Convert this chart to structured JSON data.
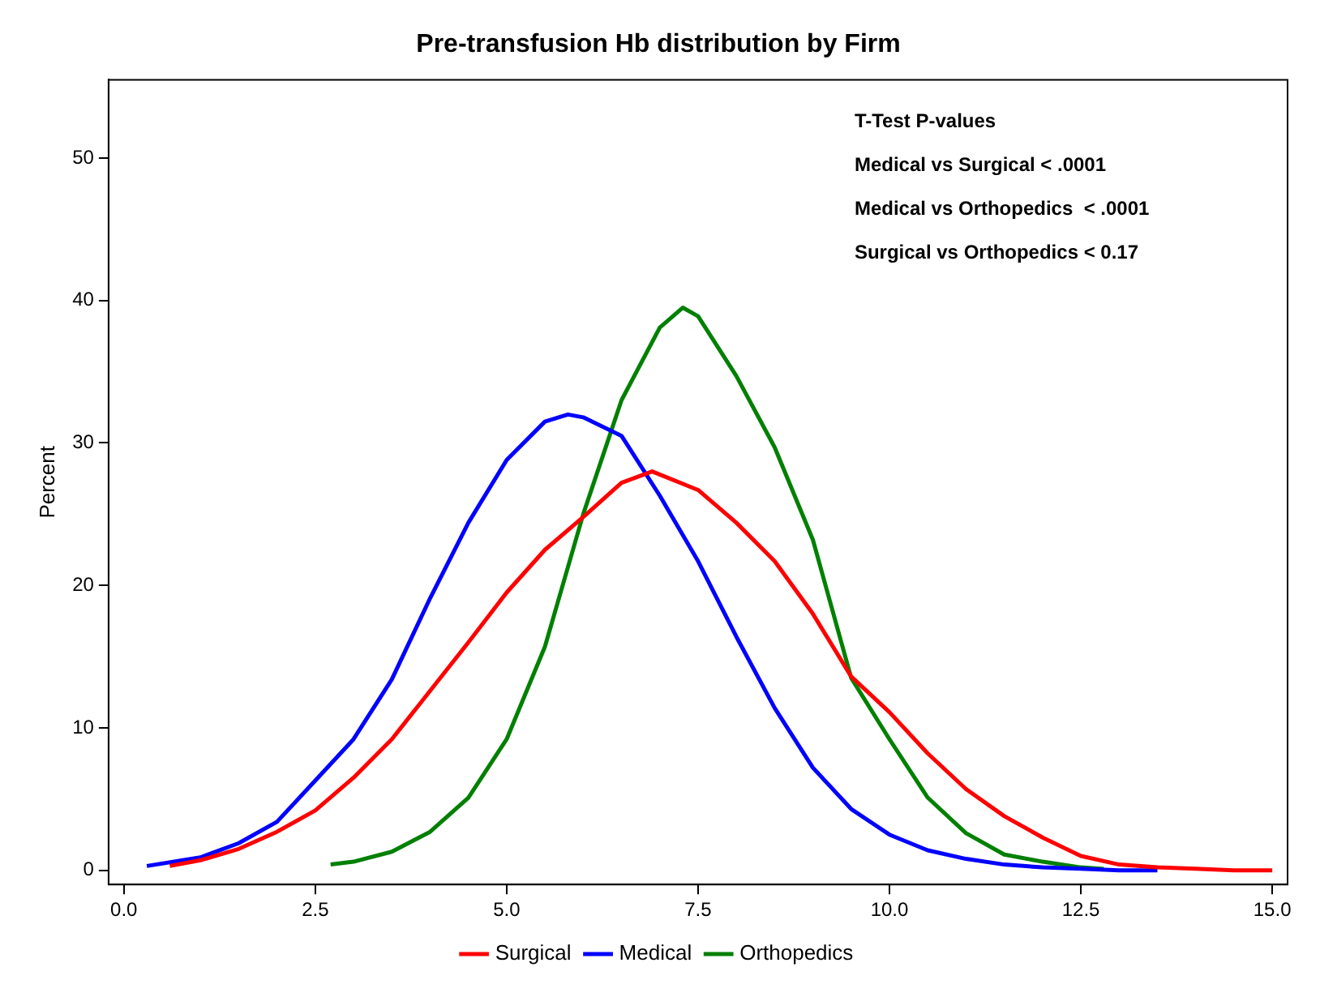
{
  "chart_data": {
    "type": "line",
    "title": "Pre-transfusion Hb distribution by Firm",
    "ylabel": "Percent",
    "annotations": [
      "T-Test P-values",
      "Medical vs Surgical < .0001",
      "Medical vs Orthopedics  < .0001",
      "Surgical vs Orthopedics < 0.17"
    ],
    "series": [
      {
        "name": "Surgical",
        "color": "#ff0000",
        "x": [
          0.6,
          1.0,
          1.5,
          2.0,
          2.5,
          3.0,
          3.5,
          4.0,
          4.5,
          5.0,
          5.5,
          6.0,
          6.5,
          6.9,
          7.5,
          8.0,
          8.5,
          9.0,
          9.5,
          10.0,
          10.5,
          11.0,
          11.5,
          12.0,
          12.5,
          13.0,
          13.5,
          14.0,
          14.5,
          15.0
        ],
        "values": [
          0.3,
          0.7,
          1.5,
          2.7,
          4.2,
          6.5,
          9.2,
          12.6,
          16.0,
          19.5,
          22.5,
          24.8,
          27.2,
          28.0,
          26.7,
          24.4,
          21.7,
          18.0,
          13.6,
          11.1,
          8.2,
          5.7,
          3.8,
          2.3,
          1.0,
          0.4,
          0.2,
          0.1,
          0.0,
          0.0
        ]
      },
      {
        "name": "Medical",
        "color": "#0000ff",
        "x": [
          0.3,
          1.0,
          1.5,
          2.0,
          2.5,
          3.0,
          3.5,
          4.0,
          4.5,
          5.0,
          5.5,
          5.8,
          6.0,
          6.5,
          7.0,
          7.5,
          8.0,
          8.5,
          9.0,
          9.5,
          10.0,
          10.5,
          11.0,
          11.5,
          12.0,
          12.5,
          13.0,
          13.5
        ],
        "values": [
          0.3,
          0.9,
          1.9,
          3.4,
          6.3,
          9.2,
          13.4,
          19.1,
          24.4,
          28.8,
          31.5,
          32.0,
          31.8,
          30.5,
          26.3,
          21.7,
          16.4,
          11.4,
          7.2,
          4.3,
          2.5,
          1.4,
          0.8,
          0.4,
          0.2,
          0.1,
          0.0,
          0.0
        ]
      },
      {
        "name": "Orthopedics",
        "color": "#008000",
        "x": [
          2.7,
          3.0,
          3.5,
          4.0,
          4.5,
          5.0,
          5.5,
          6.0,
          6.5,
          7.0,
          7.3,
          7.5,
          8.0,
          8.5,
          9.0,
          9.5,
          10.0,
          10.5,
          11.0,
          11.5,
          12.0,
          12.5,
          12.8
        ],
        "values": [
          0.4,
          0.6,
          1.3,
          2.7,
          5.1,
          9.2,
          15.7,
          25.0,
          33.0,
          38.1,
          39.5,
          38.9,
          34.7,
          29.7,
          23.2,
          13.5,
          9.2,
          5.1,
          2.6,
          1.1,
          0.6,
          0.2,
          0.1
        ]
      }
    ],
    "xlim": [
      -0.2,
      15.2
    ],
    "ylim": [
      -1,
      55.5
    ],
    "xticks": [
      {
        "value": 0,
        "label": "0.0"
      },
      {
        "value": 2.5,
        "label": "2.5"
      },
      {
        "value": 5,
        "label": "5.0"
      },
      {
        "value": 7.5,
        "label": "7.5"
      },
      {
        "value": 10,
        "label": "10.0"
      },
      {
        "value": 12.5,
        "label": "12.5"
      },
      {
        "value": 15,
        "label": "15.0"
      }
    ],
    "yticks": [
      0,
      10,
      20,
      30,
      40,
      50
    ],
    "grid": false,
    "legend": "bottom",
    "marker": "none",
    "line_style": "solid"
  }
}
